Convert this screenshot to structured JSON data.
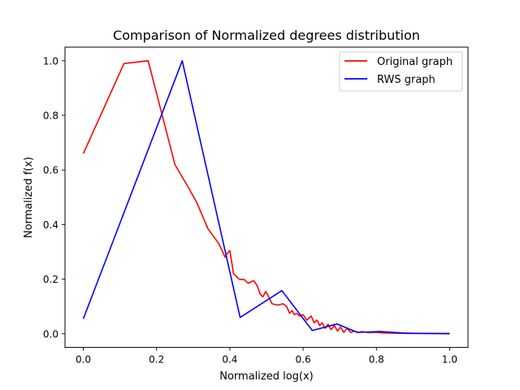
{
  "chart_data": {
    "type": "line",
    "title": "Comparison of Normalized degrees distribution",
    "xlabel": "Normalized log(x)",
    "ylabel": "Normalized f(x)",
    "xlim": [
      -0.05,
      1.05
    ],
    "ylim": [
      -0.05,
      1.05
    ],
    "xticks": [
      0.0,
      0.2,
      0.4,
      0.6,
      0.8,
      1.0
    ],
    "xtick_labels": [
      "0.0",
      "0.2",
      "0.4",
      "0.6",
      "0.8",
      "1.0"
    ],
    "yticks": [
      0.0,
      0.2,
      0.4,
      0.6,
      0.8,
      1.0
    ],
    "ytick_labels": [
      "0.0",
      "0.2",
      "0.4",
      "0.6",
      "0.8",
      "1.0"
    ],
    "grid": false,
    "legend_position": "upper right",
    "series": [
      {
        "name": "Original graph",
        "color": "#ff0000",
        "x": [
          0.0,
          0.111,
          0.177,
          0.25,
          0.285,
          0.31,
          0.34,
          0.37,
          0.387,
          0.39,
          0.4,
          0.41,
          0.425,
          0.44,
          0.45,
          0.465,
          0.475,
          0.483,
          0.49,
          0.498,
          0.506,
          0.515,
          0.53,
          0.545,
          0.555,
          0.563,
          0.57,
          0.576,
          0.582,
          0.59,
          0.6,
          0.61,
          0.622,
          0.63,
          0.638,
          0.645,
          0.652,
          0.66,
          0.668,
          0.676,
          0.685,
          0.694,
          0.702,
          0.711,
          0.72,
          0.73,
          0.74,
          0.75,
          0.76,
          0.78,
          0.8,
          0.82,
          0.85,
          0.9,
          0.95,
          1.0
        ],
        "y": [
          0.66,
          0.99,
          1.0,
          0.62,
          0.54,
          0.48,
          0.385,
          0.33,
          0.28,
          0.29,
          0.305,
          0.22,
          0.2,
          0.198,
          0.185,
          0.195,
          0.175,
          0.145,
          0.135,
          0.155,
          0.135,
          0.11,
          0.105,
          0.11,
          0.1,
          0.075,
          0.085,
          0.07,
          0.075,
          0.065,
          0.07,
          0.05,
          0.065,
          0.04,
          0.05,
          0.03,
          0.04,
          0.02,
          0.035,
          0.015,
          0.03,
          0.01,
          0.025,
          0.005,
          0.02,
          0.005,
          0.01,
          0.005,
          0.008,
          0.004,
          0.005,
          0.003,
          0.002,
          0.001,
          0.001,
          0.0
        ]
      },
      {
        "name": "RWS graph",
        "color": "#0000ff",
        "x": [
          0.0,
          0.27,
          0.428,
          0.542,
          0.625,
          0.693,
          0.748,
          0.81,
          0.87,
          0.9,
          0.95,
          1.0
        ],
        "y": [
          0.055,
          1.0,
          0.06,
          0.158,
          0.012,
          0.036,
          0.005,
          0.008,
          0.003,
          0.002,
          0.001,
          0.001
        ]
      }
    ]
  }
}
